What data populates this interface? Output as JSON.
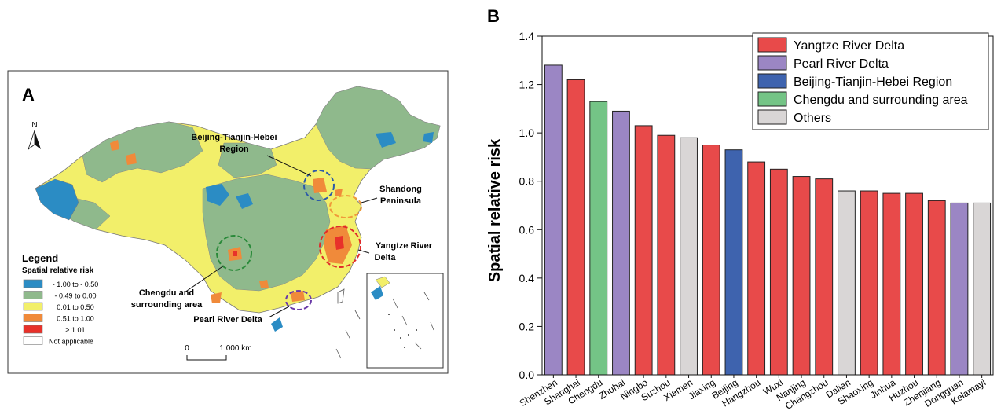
{
  "panel_a": {
    "letter": "A",
    "north_label": "N",
    "legend_title": "Legend",
    "legend_subtitle": "Spatial relative risk",
    "legend_items": [
      {
        "label": "- 1.00  to - 0.50",
        "color": "#2b8cc4"
      },
      {
        "label": "- 0.49  to  0.00",
        "color": "#8fb98c"
      },
      {
        "label": "0.01  to  0.50",
        "color": "#f2ef6a"
      },
      {
        "label": "0.51  to  1.00",
        "color": "#f08a3a"
      },
      {
        "label": "≥  1.01",
        "color": "#e8312a"
      },
      {
        "label": "Not applicable",
        "color": "#ffffff"
      }
    ],
    "annotations": {
      "bth": [
        "Beijing-Tianjin-Hebei",
        "Region"
      ],
      "shandong": [
        "Shandong",
        "Peninsula"
      ],
      "yangtze": [
        "Yangtze River",
        "Delta"
      ],
      "chengdu": [
        "Chengdu and",
        "surrounding area"
      ],
      "pearl": [
        "Pearl River Delta"
      ]
    },
    "scale_zero": "0",
    "scale_end": "1,000 km"
  },
  "panel_b": {
    "letter": "B"
  },
  "chart_data": {
    "type": "bar",
    "title": "",
    "xlabel": "",
    "ylabel": "Spatial relative risk",
    "ylim": [
      0.0,
      1.4
    ],
    "yticks": [
      "0.0",
      "0.2",
      "0.4",
      "0.6",
      "0.8",
      "1.0",
      "1.2",
      "1.4"
    ],
    "legend_position": "top-right",
    "legend": [
      {
        "name": "Yangtze River Delta",
        "color": "#e84a4a"
      },
      {
        "name": "Pearl River Delta",
        "color": "#9b86c4"
      },
      {
        "name": "Beijing-Tianjin-Hebei Region",
        "color": "#3e63ae"
      },
      {
        "name": "Chengdu and surrounding area",
        "color": "#74c486"
      },
      {
        "name": "Others",
        "color": "#d9d6d6"
      }
    ],
    "categories": [
      "Shenzhen",
      "Shanghai",
      "Chengdu",
      "Zhuhai",
      "Ningbo",
      "Suzhou",
      "Xiamen",
      "Jiaxing",
      "Beijing",
      "Hangzhou",
      "Wuxi",
      "Nanjing",
      "Changzhou",
      "Dalian",
      "Shaoxing",
      "Jinhua",
      "Huzhou",
      "Zhenjiang",
      "Dongguan",
      "Kelamayi"
    ],
    "values": [
      1.28,
      1.22,
      1.13,
      1.09,
      1.03,
      0.99,
      0.98,
      0.95,
      0.93,
      0.88,
      0.85,
      0.82,
      0.81,
      0.76,
      0.76,
      0.75,
      0.75,
      0.72,
      0.71,
      0.71
    ],
    "groups": [
      "Pearl River Delta",
      "Yangtze River Delta",
      "Chengdu and surrounding area",
      "Pearl River Delta",
      "Yangtze River Delta",
      "Yangtze River Delta",
      "Others",
      "Yangtze River Delta",
      "Beijing-Tianjin-Hebei Region",
      "Yangtze River Delta",
      "Yangtze River Delta",
      "Yangtze River Delta",
      "Yangtze River Delta",
      "Others",
      "Yangtze River Delta",
      "Yangtze River Delta",
      "Yangtze River Delta",
      "Yangtze River Delta",
      "Pearl River Delta",
      "Others"
    ]
  }
}
